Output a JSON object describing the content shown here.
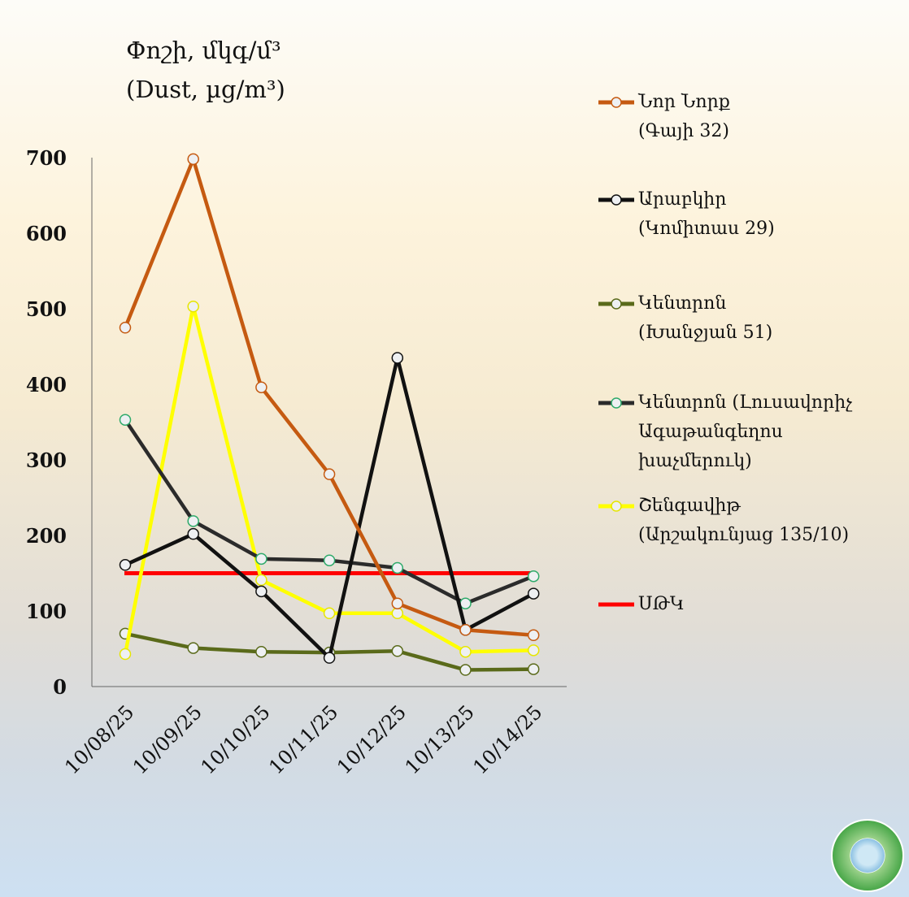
{
  "chart_data": {
    "type": "line",
    "title": "Փոշի, մկգ/մ³",
    "subtitle": "(Dust, µg/m³)",
    "xlabel": "",
    "ylabel": "",
    "categories": [
      "10/08/25",
      "10/09/25",
      "10/10/25",
      "10/11/25",
      "10/12/25",
      "10/13/25",
      "10/14/25"
    ],
    "yticks": [
      "0",
      "100",
      "200",
      "300",
      "400",
      "500",
      "600",
      "700"
    ],
    "ylim": [
      0,
      700
    ],
    "grid": false,
    "legend_position": "right",
    "series": [
      {
        "name": "Նոր Նորք\n(Գայի 32)",
        "color": "#c55a11",
        "marker_stroke": "#c55a11",
        "values": [
          475,
          698,
          396,
          281,
          110,
          75,
          68
        ]
      },
      {
        "name": "Արաբկիր\n(Կոմիտաս 29)",
        "color": "#111111",
        "marker_stroke": "#111111",
        "values": [
          161,
          202,
          126,
          38,
          435,
          75,
          123
        ]
      },
      {
        "name": "Կենտրոն\n(Խանջյան 51)",
        "color": "#5a6a1a",
        "marker_stroke": "#5a6a1a",
        "values": [
          70,
          51,
          46,
          45,
          47,
          22,
          23
        ]
      },
      {
        "name": "Կենտրոն (Լուսավորիչ\nԱգաթանգեղոս\nխաչմերուկ)",
        "color": "#2b2b2b",
        "marker_stroke": "#2eaa6a",
        "values": [
          353,
          219,
          169,
          167,
          157,
          110,
          146
        ]
      },
      {
        "name": "Շենգավիթ\n(Արշակունյաց 135/10)",
        "color": "#ffff00",
        "marker_stroke": "#e6e600",
        "values": [
          43,
          503,
          141,
          97,
          97,
          46,
          48
        ]
      },
      {
        "name": "ՍԹԿ",
        "color": "#ff0000",
        "marker_stroke": null,
        "values": [
          150,
          150,
          150,
          150,
          150,
          150,
          150
        ]
      }
    ]
  }
}
